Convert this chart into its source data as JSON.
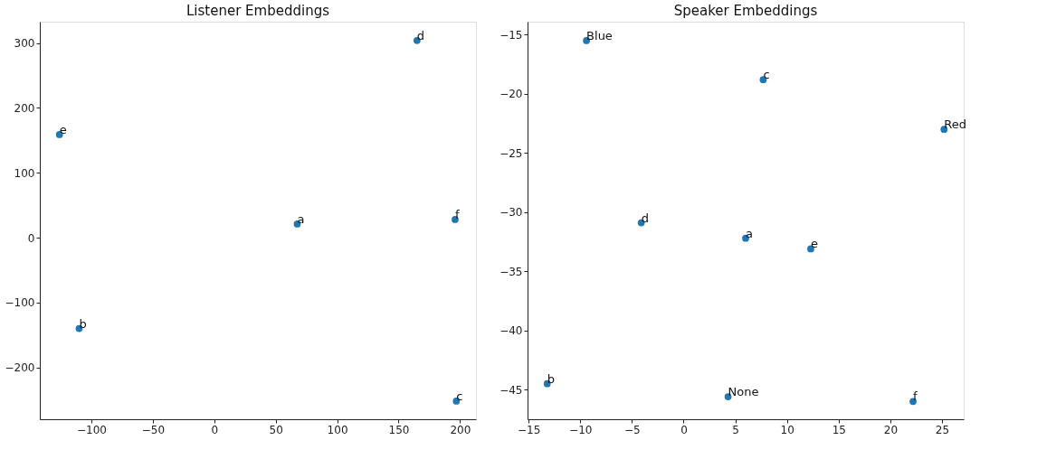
{
  "chart_data": [
    {
      "type": "scatter",
      "title": "Listener Embeddings",
      "x": [
        67.5,
        -110,
        196,
        165,
        -126,
        197
      ],
      "series": [
        {
          "color": "#1f77b4",
          "values": [
            21,
            -140,
            28,
            304,
            159,
            -252
          ]
        }
      ],
      "annotations": [
        {
          "text": "a",
          "x": 67.5,
          "y": 21
        },
        {
          "text": "b",
          "x": -110,
          "y": -140
        },
        {
          "text": "f",
          "x": 196,
          "y": 28
        },
        {
          "text": "d",
          "x": 165,
          "y": 304
        },
        {
          "text": "e",
          "x": -126,
          "y": 159
        },
        {
          "text": "c",
          "x": 197,
          "y": -252
        }
      ],
      "xlim": [
        -142,
        213
      ],
      "ylim": [
        -280,
        333
      ],
      "xticks": [
        -100,
        -50,
        0,
        50,
        100,
        150,
        200
      ],
      "yticks": [
        -200,
        -100,
        0,
        100,
        200,
        300
      ],
      "grid": false,
      "marker": "circle"
    },
    {
      "type": "scatter",
      "title": "Speaker Embeddings",
      "x": [
        -9.4,
        7.7,
        25.2,
        -4.1,
        6.0,
        12.3,
        -13.2,
        4.3,
        22.2
      ],
      "series": [
        {
          "color": "#1f77b4",
          "values": [
            -15.5,
            -18.8,
            -23.0,
            -30.9,
            -32.2,
            -33.1,
            -44.5,
            -45.6,
            -46.0
          ]
        }
      ],
      "annotations": [
        {
          "text": "Blue",
          "x": -9.4,
          "y": -15.5
        },
        {
          "text": "c",
          "x": 7.7,
          "y": -18.8
        },
        {
          "text": "Red",
          "x": 25.2,
          "y": -23.0
        },
        {
          "text": "d",
          "x": -4.1,
          "y": -30.9
        },
        {
          "text": "a",
          "x": 6.0,
          "y": -32.2
        },
        {
          "text": "e",
          "x": 12.3,
          "y": -33.1
        },
        {
          "text": "b",
          "x": -13.2,
          "y": -44.5
        },
        {
          "text": "None",
          "x": 4.3,
          "y": -45.6
        },
        {
          "text": "f",
          "x": 22.2,
          "y": -46.0
        }
      ],
      "xlim": [
        -15.1,
        27.1
      ],
      "ylim": [
        -47.5,
        -13.9
      ],
      "xticks": [
        -15,
        -10,
        -5,
        0,
        5,
        10,
        15,
        20,
        25
      ],
      "yticks": [
        -45,
        -40,
        -35,
        -30,
        -25,
        -20,
        -15
      ],
      "grid": false,
      "marker": "circle"
    }
  ]
}
